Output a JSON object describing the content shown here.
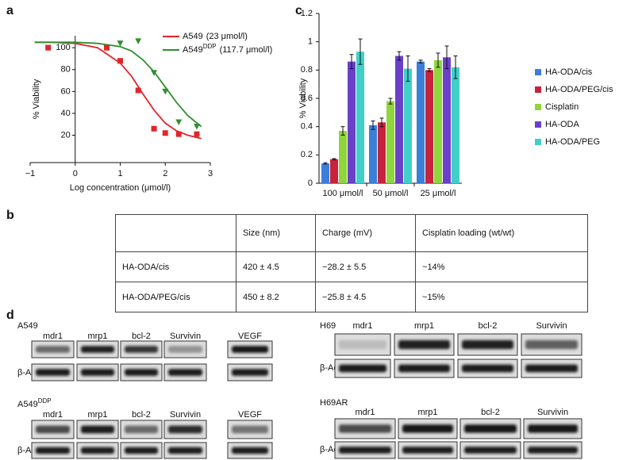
{
  "panel_labels": [
    "a",
    "b",
    "c",
    "d"
  ],
  "chart_data": [
    {
      "type": "scatter",
      "xlabel": "Log concentration (μmol/l)",
      "ylabel": "% Viability",
      "xlim": [
        -1,
        3
      ],
      "xticks": [
        {
          "value": -1,
          "label": "−1"
        },
        0,
        1,
        2,
        3
      ],
      "ylim": [
        -5,
        111
      ],
      "yticks": [
        20,
        40,
        60,
        80,
        100
      ],
      "fit_x": [
        -0.9,
        -0.5,
        0,
        0.5,
        1,
        1.25,
        1.5,
        1.75,
        2,
        2.25,
        2.5,
        2.8
      ],
      "series": [
        {
          "name": "A549",
          "ic50_label": "(23 μmol/l)",
          "color": "#e0262b",
          "marker": "square",
          "x": [
            -0.6,
            0.7,
            1.0,
            1.4,
            1.75,
            2.0,
            2.3,
            2.7
          ],
          "values": [
            100,
            100,
            88,
            61,
            26,
            22,
            21,
            21
          ],
          "fit": [
            105,
            105,
            104,
            100,
            86,
            74,
            58,
            43,
            31,
            24,
            20,
            17
          ]
        },
        {
          "name": "A549",
          "name_sup": "DDP",
          "ic50_label": "(117.7 μmol/l)",
          "color": "#2f8f2f",
          "marker": "triangle",
          "x": [
            -0.6,
            0.7,
            1.0,
            1.4,
            1.75,
            2.0,
            2.3,
            2.7
          ],
          "values": [
            100,
            100,
            104,
            106,
            77,
            60,
            32,
            28
          ],
          "fit": [
            105,
            105,
            105,
            104,
            101,
            97,
            89,
            78,
            64,
            50,
            38,
            28
          ]
        }
      ]
    },
    {
      "type": "bar",
      "ylabel": "% Viability",
      "categories": [
        "100 μmol/l",
        "50 μmol/l",
        "25 μmol/l"
      ],
      "ylim": [
        0,
        1.2
      ],
      "yticks": [
        0,
        0.2,
        0.4,
        0.6,
        0.8,
        1,
        1.2
      ],
      "series": [
        {
          "name": "HA-ODA/cis",
          "color": "#3b7fd9",
          "values": [
            0.14,
            0.41,
            0.86
          ],
          "errors": [
            0.005,
            0.03,
            0.01
          ]
        },
        {
          "name": "HA-ODA/PEG/cis",
          "color": "#c8223c",
          "values": [
            0.17,
            0.43,
            0.8
          ],
          "errors": [
            0.004,
            0.03,
            0.01
          ]
        },
        {
          "name": "Cisplatin",
          "color": "#8fd53b",
          "values": [
            0.37,
            0.58,
            0.87
          ],
          "errors": [
            0.03,
            0.02,
            0.05
          ]
        },
        {
          "name": "HA-ODA",
          "color": "#6a40c9",
          "values": [
            0.86,
            0.9,
            0.89
          ],
          "errors": [
            0.05,
            0.03,
            0.08
          ]
        },
        {
          "name": "HA-ODA/PEG",
          "color": "#40d0c8",
          "values": [
            0.93,
            0.81,
            0.82
          ],
          "errors": [
            0.09,
            0.09,
            0.08
          ]
        }
      ]
    }
  ],
  "table": {
    "columns": [
      "Size (nm)",
      "Charge (mV)",
      "Cisplatin loading (wt/wt)"
    ],
    "rows": [
      {
        "name": "HA-ODA/cis",
        "cells": [
          "420 ± 4.5",
          "−28.2 ± 5.5",
          "~14%"
        ]
      },
      {
        "name": "HA-ODA/PEG/cis",
        "cells": [
          "450 ± 8.2",
          "−25.8 ± 4.5",
          "~15%"
        ]
      }
    ]
  },
  "blots": {
    "loading_control": "β-Actin",
    "groups": [
      {
        "cell_line": "A549",
        "genes": [
          "mdr1",
          "mrp1",
          "bcl-2",
          "Survivin",
          "VEGF"
        ]
      },
      {
        "cell_line": "A549",
        "cell_line_sup": "DDP",
        "genes": [
          "mdr1",
          "mrp1",
          "bcl-2",
          "Survivin",
          "VEGF"
        ]
      },
      {
        "cell_line": "H69",
        "genes": [
          "mdr1",
          "mrp1",
          "bcl-2",
          "Survivin"
        ]
      },
      {
        "cell_line": "H69AR",
        "genes": [
          "mdr1",
          "mrp1",
          "bcl-2",
          "Survivin"
        ]
      }
    ]
  }
}
